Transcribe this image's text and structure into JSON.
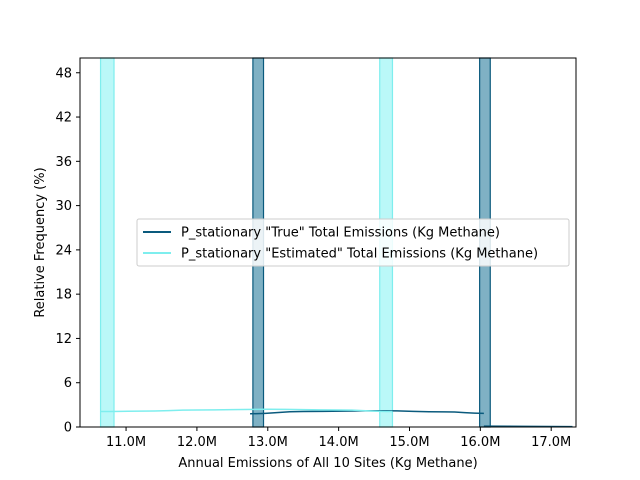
{
  "chart_data": {
    "type": "histogram",
    "xlabel": "Annual Emissions of All 10 Sites (Kg Methane)",
    "ylabel": "Relative Frequency (%)",
    "xlim": [
      10.35,
      17.35
    ],
    "ylim": [
      0,
      50
    ],
    "x_unit_suffix": "M",
    "xticks": [
      {
        "value": 11.0,
        "label": "11.0M"
      },
      {
        "value": 12.0,
        "label": "12.0M"
      },
      {
        "value": 13.0,
        "label": "13.0M"
      },
      {
        "value": 14.0,
        "label": "14.0M"
      },
      {
        "value": 15.0,
        "label": "15.0M"
      },
      {
        "value": 16.0,
        "label": "16.0M"
      },
      {
        "value": 17.0,
        "label": "17.0M"
      }
    ],
    "yticks": [
      {
        "value": 0,
        "label": "0"
      },
      {
        "value": 6,
        "label": "6"
      },
      {
        "value": 12,
        "label": "12"
      },
      {
        "value": 18,
        "label": "18"
      },
      {
        "value": 24,
        "label": "24"
      },
      {
        "value": 30,
        "label": "30"
      },
      {
        "value": 36,
        "label": "36"
      },
      {
        "value": 42,
        "label": "42"
      },
      {
        "value": 48,
        "label": "48"
      }
    ],
    "legend_position": "center",
    "series": [
      {
        "name": "P_stationary \"True\" Total Emissions (Kg Methane)",
        "line_color": "#0a5a7d",
        "bar_fill": "#7fb1c4",
        "bars": [
          {
            "x0": 12.79,
            "x1": 12.94,
            "value": 50
          },
          {
            "x0": 15.99,
            "x1": 16.14,
            "value": 50
          }
        ],
        "kde": [
          [
            12.75,
            1.8
          ],
          [
            13.5,
            2.1
          ],
          [
            14.6,
            2.2
          ],
          [
            15.5,
            2.05
          ],
          [
            16.05,
            1.85
          ]
        ],
        "kde_tail": [
          [
            16.05,
            0.12
          ],
          [
            17.3,
            0.05
          ]
        ]
      },
      {
        "name": "P_stationary \"Estimated\" Total Emissions (Kg Methane)",
        "line_color": "#7eeeee",
        "bar_fill": "#b3f7f7",
        "bars": [
          {
            "x0": 10.64,
            "x1": 10.83,
            "value": 50
          },
          {
            "x0": 14.58,
            "x1": 14.76,
            "value": 50
          }
        ],
        "kde": [
          [
            10.64,
            2.1
          ],
          [
            11.2,
            2.15
          ],
          [
            12.0,
            2.3
          ],
          [
            13.0,
            2.4
          ],
          [
            14.0,
            2.3
          ],
          [
            14.76,
            2.1
          ]
        ]
      }
    ]
  }
}
